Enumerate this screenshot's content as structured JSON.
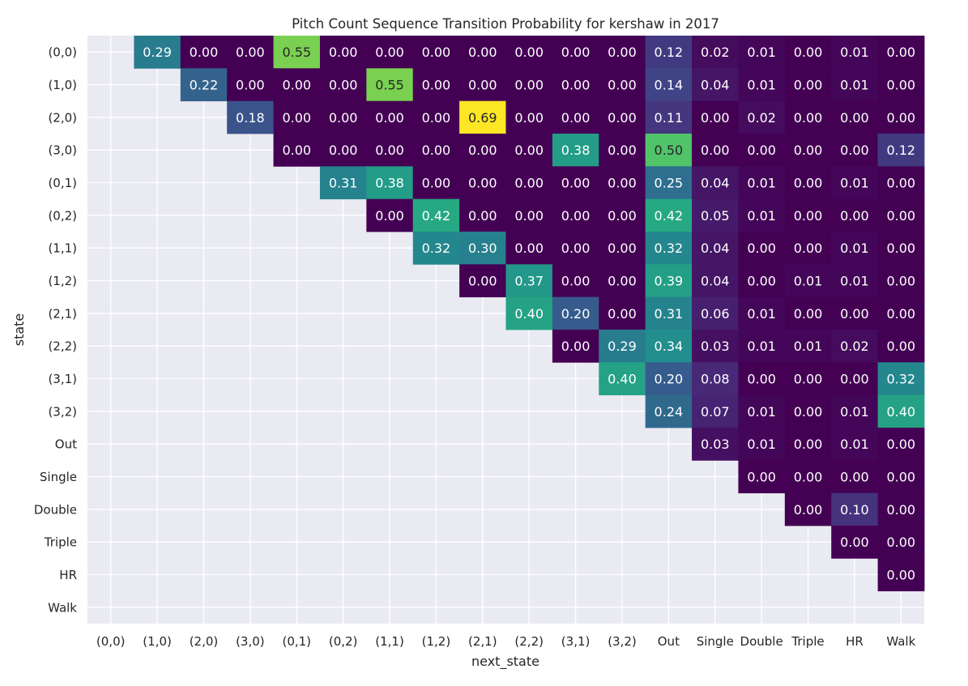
{
  "chart_data": {
    "type": "heatmap",
    "title": "Pitch Count Sequence Transition Probability for kershaw in 2017",
    "xlabel": "next_state",
    "ylabel": "state",
    "x_categories": [
      "(0,0)",
      "(1,0)",
      "(2,0)",
      "(3,0)",
      "(0,1)",
      "(0,2)",
      "(1,1)",
      "(1,2)",
      "(2,1)",
      "(2,2)",
      "(3,1)",
      "(3,2)",
      "Out",
      "Single",
      "Double",
      "Triple",
      "HR",
      "Walk"
    ],
    "y_categories": [
      "(0,0)",
      "(1,0)",
      "(2,0)",
      "(3,0)",
      "(0,1)",
      "(0,2)",
      "(1,1)",
      "(1,2)",
      "(2,1)",
      "(2,2)",
      "(3,1)",
      "(3,2)",
      "Out",
      "Single",
      "Double",
      "Triple",
      "HR",
      "Walk"
    ],
    "colormap": "viridis",
    "value_range": [
      0,
      0.69
    ],
    "grid": true,
    "values": [
      [
        null,
        0.29,
        0.0,
        0.0,
        0.55,
        0.0,
        0.0,
        0.0,
        0.0,
        0.0,
        0.0,
        0.0,
        0.12,
        0.02,
        0.01,
        0.0,
        0.01,
        0.0
      ],
      [
        null,
        null,
        0.22,
        0.0,
        0.0,
        0.0,
        0.55,
        0.0,
        0.0,
        0.0,
        0.0,
        0.0,
        0.14,
        0.04,
        0.01,
        0.0,
        0.01,
        0.0
      ],
      [
        null,
        null,
        null,
        0.18,
        0.0,
        0.0,
        0.0,
        0.0,
        0.69,
        0.0,
        0.0,
        0.0,
        0.11,
        0.0,
        0.02,
        0.0,
        0.0,
        0.0
      ],
      [
        null,
        null,
        null,
        null,
        0.0,
        0.0,
        0.0,
        0.0,
        0.0,
        0.0,
        0.38,
        0.0,
        0.5,
        0.0,
        0.0,
        0.0,
        0.0,
        0.12
      ],
      [
        null,
        null,
        null,
        null,
        null,
        0.31,
        0.38,
        0.0,
        0.0,
        0.0,
        0.0,
        0.0,
        0.25,
        0.04,
        0.01,
        0.0,
        0.01,
        0.0
      ],
      [
        null,
        null,
        null,
        null,
        null,
        null,
        0.0,
        0.42,
        0.0,
        0.0,
        0.0,
        0.0,
        0.42,
        0.05,
        0.01,
        0.0,
        0.0,
        0.0
      ],
      [
        null,
        null,
        null,
        null,
        null,
        null,
        null,
        0.32,
        0.3,
        0.0,
        0.0,
        0.0,
        0.32,
        0.04,
        0.0,
        0.0,
        0.01,
        0.0
      ],
      [
        null,
        null,
        null,
        null,
        null,
        null,
        null,
        null,
        0.0,
        0.37,
        0.0,
        0.0,
        0.39,
        0.04,
        0.0,
        0.01,
        0.01,
        0.0
      ],
      [
        null,
        null,
        null,
        null,
        null,
        null,
        null,
        null,
        null,
        0.4,
        0.2,
        0.0,
        0.31,
        0.06,
        0.01,
        0.0,
        0.0,
        0.0
      ],
      [
        null,
        null,
        null,
        null,
        null,
        null,
        null,
        null,
        null,
        null,
        0.0,
        0.29,
        0.34,
        0.03,
        0.01,
        0.01,
        0.02,
        0.0
      ],
      [
        null,
        null,
        null,
        null,
        null,
        null,
        null,
        null,
        null,
        null,
        null,
        0.4,
        0.2,
        0.08,
        0.0,
        0.0,
        0.0,
        0.32
      ],
      [
        null,
        null,
        null,
        null,
        null,
        null,
        null,
        null,
        null,
        null,
        null,
        null,
        0.24,
        0.07,
        0.01,
        0.0,
        0.01,
        0.4
      ],
      [
        null,
        null,
        null,
        null,
        null,
        null,
        null,
        null,
        null,
        null,
        null,
        null,
        null,
        0.03,
        0.01,
        0.0,
        0.01,
        0.0
      ],
      [
        null,
        null,
        null,
        null,
        null,
        null,
        null,
        null,
        null,
        null,
        null,
        null,
        null,
        null,
        0.0,
        0.0,
        0.0,
        0.0
      ],
      [
        null,
        null,
        null,
        null,
        null,
        null,
        null,
        null,
        null,
        null,
        null,
        null,
        null,
        null,
        null,
        0.0,
        0.1,
        0.0
      ],
      [
        null,
        null,
        null,
        null,
        null,
        null,
        null,
        null,
        null,
        null,
        null,
        null,
        null,
        null,
        null,
        null,
        0.0,
        0.0
      ],
      [
        null,
        null,
        null,
        null,
        null,
        null,
        null,
        null,
        null,
        null,
        null,
        null,
        null,
        null,
        null,
        null,
        null,
        0.0
      ],
      [
        null,
        null,
        null,
        null,
        null,
        null,
        null,
        null,
        null,
        null,
        null,
        null,
        null,
        null,
        null,
        null,
        null,
        null
      ]
    ]
  }
}
